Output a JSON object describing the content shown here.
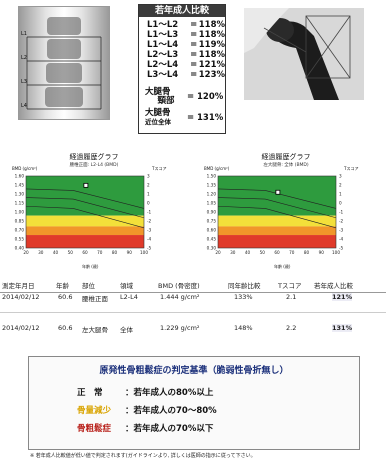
{
  "header": {
    "ratio_title": "若年成人比較",
    "ratios": [
      {
        "label": "L1～L2",
        "value": "118%"
      },
      {
        "label": "L1～L3",
        "value": "118%"
      },
      {
        "label": "L1～L4",
        "value": "119%"
      },
      {
        "label": "L2～L3",
        "value": "118%"
      },
      {
        "label": "L2～L4",
        "value": "121%"
      },
      {
        "label": "L3～L4",
        "value": "123%"
      }
    ],
    "femur_neck_label_1": "大腿骨",
    "femur_neck_label_2": "頸部",
    "femur_neck_value": "120%",
    "femur_total_label_1": "大腿骨",
    "femur_total_label_2": "近位全体",
    "femur_total_value": "131%",
    "equals": "="
  },
  "spine_image": {
    "labels": [
      "L1",
      "L2",
      "L3",
      "L4"
    ]
  },
  "charts": {
    "left": {
      "title": "経過履歴グラフ",
      "subtitle": "腰椎正面: L2-L4 (BMD)",
      "y_left_label": "BMD (g/cm²)",
      "y_right_label": "Tスコア",
      "x_label": "年齢 (歳)"
    },
    "right": {
      "title": "経過履歴グラフ",
      "subtitle": "左大腿骨: 全体 (BMD)",
      "y_left_label": "BMD (g/cm²)",
      "y_right_label": "Tスコア",
      "x_label": "年齢 (歳)"
    }
  },
  "chart_data": [
    {
      "type": "line",
      "title": "経過履歴グラフ",
      "x_ticks": [
        "20",
        "30",
        "40",
        "50",
        "60",
        "70",
        "80",
        "90",
        "100"
      ],
      "y_left_ticks": [
        "1.60",
        "1.45",
        "1.30",
        "1.15",
        "1.00",
        "0.85",
        "0.70",
        "0.55",
        "0.40"
      ],
      "y_right_ticks": [
        "3",
        "2",
        "1",
        "0",
        "-1",
        "-2",
        "-3",
        "-4",
        "-5"
      ],
      "point": {
        "x": 60.6,
        "y": 1.444
      },
      "bands_colors": [
        "#2e9b3e",
        "#f3e03a",
        "#f1962a",
        "#e03a2a"
      ]
    },
    {
      "type": "line",
      "title": "経過履歴グラフ",
      "x_ticks": [
        "20",
        "30",
        "40",
        "50",
        "60",
        "70",
        "80",
        "90",
        "100"
      ],
      "y_left_ticks": [
        "1.50",
        "1.35",
        "1.20",
        "1.05",
        "0.90",
        "0.75",
        "0.60",
        "0.45",
        "0.30"
      ],
      "y_right_ticks": [
        "3",
        "2",
        "1",
        "0",
        "-1",
        "-2",
        "-3",
        "-4",
        "-5"
      ],
      "point": {
        "x": 60.6,
        "y": 1.229
      },
      "bands_colors": [
        "#2e9b3e",
        "#f3e03a",
        "#f1962a",
        "#e03a2a"
      ]
    }
  ],
  "table": {
    "headers": [
      "測定年月日",
      "年齢",
      "部位",
      "領域",
      "BMD (骨密度)",
      "同年齢比較",
      "Tスコア",
      "若年成人比較"
    ],
    "rows": [
      [
        "2014/02/12",
        "60.6",
        "腰椎正面",
        "L2-L4",
        "1.444 g/cm²",
        "133%",
        "2.1",
        "121%"
      ],
      [
        "2014/02/12",
        "60.6",
        "左大腿骨",
        "全体",
        "1.229 g/cm²",
        "148%",
        "2.2",
        "131%"
      ]
    ]
  },
  "criteria": {
    "title": "原発性骨粗鬆症の判定基準（脆弱性骨折無し）",
    "rows": [
      {
        "label": "正　常",
        "text": "：若年成人の80%以上",
        "color": "#111111"
      },
      {
        "label": "骨量減少",
        "text": "：若年成人の70～80%",
        "color": "#d9a400"
      },
      {
        "label": "骨粗鬆症",
        "text": "：若年成人の70%以下",
        "color": "#b8201a"
      }
    ],
    "footnote": "※ 若年成人比較値が低い値で判定されます(ガイドラインより, 詳しくは医師の指示に従って下さい。"
  }
}
